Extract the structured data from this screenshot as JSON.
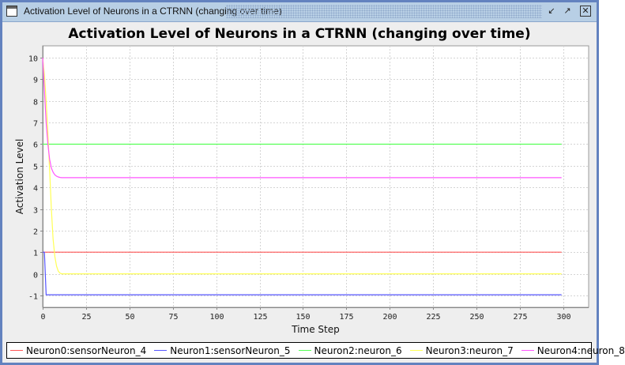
{
  "window": {
    "title": "Activation Level of Neurons in a CTRNN (changing over time)",
    "buttons": [
      "minimize",
      "maximize",
      "close"
    ]
  },
  "chart_data": {
    "type": "line",
    "title": "Activation Level of Neurons in a CTRNN (changing over time)",
    "xlabel": "Time Step",
    "ylabel": "Activation Level",
    "xlim": [
      0,
      314.6
    ],
    "ylim": [
      -1.55,
      10.55
    ],
    "xticks": [
      "0",
      "25",
      "50",
      "75",
      "100",
      "125",
      "150",
      "175",
      "200",
      "225",
      "250",
      "275",
      "300"
    ],
    "yticks": [
      "-1",
      "0",
      "1",
      "2",
      "3",
      "4",
      "5",
      "6",
      "7",
      "8",
      "9",
      "10"
    ],
    "grid": true,
    "legend_position": "bottom",
    "series": [
      {
        "name": "Neuron0:sensorNeuron_4",
        "color": "#FF5555",
        "points": [
          [
            0,
            1
          ],
          [
            299,
            1
          ]
        ]
      },
      {
        "name": "Neuron1:sensorNeuron_5",
        "color": "#5555FF",
        "points": [
          [
            0,
            1
          ],
          [
            1,
            1
          ],
          [
            2,
            -0.97
          ],
          [
            299,
            -0.97
          ]
        ]
      },
      {
        "name": "Neuron2:neuron_6",
        "color": "#55FF55",
        "points": [
          [
            0,
            6
          ],
          [
            299,
            6
          ]
        ]
      },
      {
        "name": "Neuron3:neuron_7",
        "color": "#FFFF55",
        "points": [
          [
            0,
            10
          ],
          [
            1,
            9.2
          ],
          [
            2,
            8
          ],
          [
            3,
            6.5
          ],
          [
            4,
            4.8
          ],
          [
            5,
            3.0
          ],
          [
            6,
            1.6
          ],
          [
            7,
            0.8
          ],
          [
            8,
            0.35
          ],
          [
            9,
            0.12
          ],
          [
            10,
            0.03
          ],
          [
            11,
            0
          ],
          [
            299,
            0
          ]
        ]
      },
      {
        "name": "Neuron4:neuron_8",
        "color": "#FF55FF",
        "points": [
          [
            0,
            10
          ],
          [
            1,
            8.5
          ],
          [
            2,
            7
          ],
          [
            3,
            6
          ],
          [
            4,
            5.3
          ],
          [
            5,
            4.9
          ],
          [
            6,
            4.7
          ],
          [
            7,
            4.58
          ],
          [
            8,
            4.52
          ],
          [
            9,
            4.48
          ],
          [
            10,
            4.46
          ],
          [
            11,
            4.45
          ],
          [
            299,
            4.45
          ]
        ]
      }
    ]
  }
}
